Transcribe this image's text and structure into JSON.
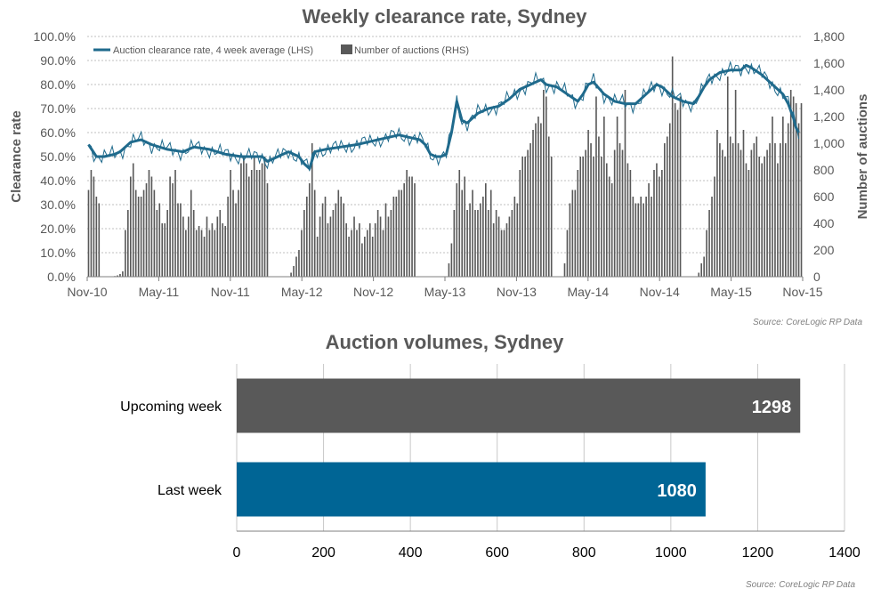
{
  "top_chart": {
    "title": "Weekly clearance rate, Sydney",
    "source": "Source: CoreLogic  RP Data"
  },
  "bottom_chart": {
    "title": "Auction volumes, Sydney",
    "source": "Source: CoreLogic  RP Data"
  },
  "colors": {
    "line": "#1f6a8c",
    "bar_dark": "#595959",
    "bar_blue": "#006595",
    "grid": "#bfbfbf",
    "text": "#595959"
  },
  "chart_data": [
    {
      "type": "bar+line",
      "title": "Weekly clearance rate, Sydney",
      "ylabel": "Clearance rate",
      "y2label": "Number of auctions",
      "ylim": [
        0,
        100
      ],
      "y2lim": [
        0,
        1800
      ],
      "x_tick_labels": [
        "Nov-10",
        "May-11",
        "Nov-11",
        "May-12",
        "Nov-12",
        "May-13",
        "Nov-13",
        "May-14",
        "Nov-14",
        "May-15",
        "Nov-15"
      ],
      "y_tick_labels": [
        "0.0%",
        "10.0%",
        "20.0%",
        "30.0%",
        "40.0%",
        "50.0%",
        "60.0%",
        "70.0%",
        "80.0%",
        "90.0%",
        "100.0%"
      ],
      "y2_tick_labels": [
        "0",
        "200",
        "400",
        "600",
        "800",
        "1,000",
        "1,200",
        "1,400",
        "1,600",
        "1,800"
      ],
      "legend": [
        "Auction clearance rate, 4 week average (LHS)",
        "Number of auctions (RHS)"
      ],
      "legend_position": "top-left",
      "series": [
        {
          "name": "Auction clearance rate, 4 week average (LHS)",
          "axis": "left",
          "unit": "%",
          "points": [
            [
              0,
              55
            ],
            [
              3,
              50
            ],
            [
              6,
              50
            ],
            [
              10,
              51
            ],
            [
              12,
              52
            ],
            [
              16,
              56
            ],
            [
              20,
              57
            ],
            [
              24,
              55
            ],
            [
              30,
              53
            ],
            [
              36,
              52
            ],
            [
              40,
              54
            ],
            [
              46,
              53
            ],
            [
              52,
              51
            ],
            [
              58,
              50
            ],
            [
              62,
              50
            ],
            [
              66,
              50
            ],
            [
              68,
              48
            ],
            [
              70,
              49
            ],
            [
              74,
              51
            ],
            [
              76,
              52
            ],
            [
              80,
              50
            ],
            [
              82,
              47
            ],
            [
              84,
              45
            ],
            [
              86,
              52
            ],
            [
              90,
              53
            ],
            [
              96,
              54
            ],
            [
              102,
              55
            ],
            [
              106,
              56
            ],
            [
              110,
              57
            ],
            [
              114,
              58
            ],
            [
              118,
              59
            ],
            [
              122,
              58
            ],
            [
              126,
              57
            ],
            [
              128,
              55
            ],
            [
              130,
              51
            ],
            [
              132,
              50
            ],
            [
              134,
              50
            ],
            [
              136,
              51
            ],
            [
              138,
              60
            ],
            [
              140,
              73
            ],
            [
              142,
              65
            ],
            [
              144,
              64
            ],
            [
              146,
              66
            ],
            [
              148,
              68
            ],
            [
              152,
              70
            ],
            [
              156,
              71
            ],
            [
              160,
              74
            ],
            [
              164,
              78
            ],
            [
              168,
              80
            ],
            [
              172,
              82
            ],
            [
              174,
              80
            ],
            [
              178,
              79
            ],
            [
              182,
              76
            ],
            [
              186,
              73
            ],
            [
              188,
              76
            ],
            [
              190,
              80
            ],
            [
              192,
              81
            ],
            [
              196,
              76
            ],
            [
              200,
              73
            ],
            [
              204,
              72
            ],
            [
              208,
              72
            ],
            [
              212,
              76
            ],
            [
              216,
              80
            ],
            [
              218,
              79
            ],
            [
              222,
              75
            ],
            [
              226,
              73
            ],
            [
              230,
              72
            ],
            [
              232,
              75
            ],
            [
              234,
              79
            ],
            [
              236,
              82
            ],
            [
              240,
              85
            ],
            [
              244,
              86
            ],
            [
              248,
              86
            ],
            [
              250,
              88
            ],
            [
              252,
              87
            ],
            [
              256,
              84
            ],
            [
              260,
              80
            ],
            [
              264,
              76
            ],
            [
              266,
              72
            ],
            [
              268,
              66
            ],
            [
              269,
              62
            ],
            [
              270,
              60
            ]
          ]
        },
        {
          "name": "Number of auctions (RHS)",
          "axis": "right",
          "type": "bar",
          "segments": [
            {
              "start": 0,
              "values": [
                650,
                800,
                750,
                600,
                550,
                0,
                0,
                0,
                0,
                0,
                5,
                10,
                20,
                40,
                350,
                500,
                750,
                850,
                650,
                600,
                600,
                650,
                700,
                800,
                750,
                650,
                500,
                550,
                400,
                400,
                500,
                750,
                700,
                800,
                550,
                550,
                450,
                350,
                450,
                650,
                500,
                350,
                380,
                350,
                300,
                450,
                350,
                400,
                350,
                450,
                500,
                400,
                380,
                600,
                800,
                650,
                550,
                650,
                850,
                900,
                850,
                750,
                800,
                900,
                800,
                800,
                850,
                900,
                700
              ]
            },
            {
              "start": 77,
              "values": [
                30,
                80,
                150,
                200,
                350,
                500,
                600,
                700,
                1000,
                650,
                300,
                450,
                550,
                600,
                400,
                450,
                500,
                550,
                650,
                600,
                550,
                400,
                300,
                350,
                450,
                350,
                400,
                250,
                300,
                350,
                400,
                300,
                400,
                500,
                450,
                350,
                550,
                450,
                500,
                600,
                600,
                650,
                650,
                700,
                800,
                750,
                750,
                700
              ]
            },
            {
              "start": 136,
              "values": [
                0,
                100,
                250,
                500,
                700,
                800,
                650,
                750,
                500,
                550,
                650,
                500,
                500,
                550,
                600,
                700,
                500,
                650,
                400,
                500,
                450,
                350,
                350,
                400,
                450,
                500,
                600,
                550,
                800,
                900,
                900,
                950,
                1000,
                1100,
                1150,
                1200,
                1150,
                1400,
                1350,
                1050,
                900
              ]
            },
            {
              "start": 181,
              "values": [
                100,
                350,
                550,
                650,
                650,
                800,
                900,
                900,
                950,
                1100,
                1000,
                900,
                1350,
                1050,
                900,
                1200,
                850,
                750,
                700,
                950,
                1200,
                1000,
                950,
                1400,
                850,
                800,
                600,
                550,
                550,
                600,
                550,
                600,
                700,
                600,
                800,
                850,
                750,
                800,
                1000,
                1050,
                1150,
                1650,
                1300,
                1250,
                1350
              ]
            },
            {
              "start": 232,
              "values": [
                30,
                100,
                150,
                350,
                500,
                600,
                750,
                1100,
                1000,
                950,
                900,
                1500,
                1050,
                1000,
                1400,
                1000,
                950,
                1100,
                850,
                800,
                950,
                1000,
                1050,
                900,
                850,
                900,
                950,
                1000,
                1200,
                1000,
                850,
                1000,
                1200,
                1000,
                1150,
                1400,
                1350,
                1300,
                1150,
                1300
              ]
            }
          ]
        }
      ]
    },
    {
      "type": "bar",
      "orientation": "horizontal",
      "title": "Auction volumes, Sydney",
      "categories": [
        "Upcoming week",
        "Last week"
      ],
      "values": [
        1298,
        1080
      ],
      "bar_colors": [
        "#595959",
        "#006595"
      ],
      "xlim": [
        0,
        1400
      ],
      "x_tick_labels": [
        "0",
        "200",
        "400",
        "600",
        "800",
        "1000",
        "1200",
        "1400"
      ]
    }
  ]
}
